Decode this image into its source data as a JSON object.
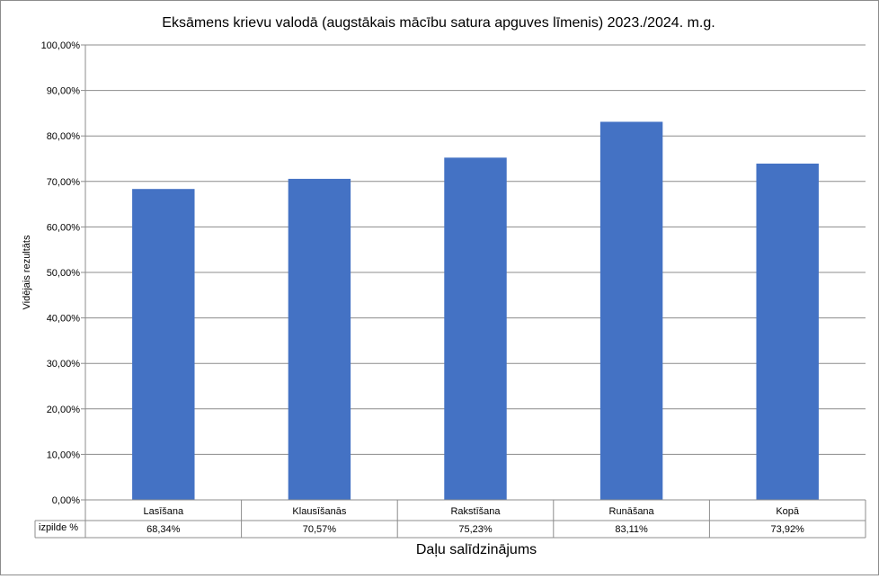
{
  "chart_data": {
    "type": "bar",
    "title": "Eksāmens krievu valodā (augstākais mācību satura apguves līmenis) 2023./2024. m.g.",
    "xlabel": "Daļu salīdzinājums",
    "ylabel": "Vidējais rezultāts",
    "ylim": [
      0,
      100
    ],
    "yticks": [
      0,
      10,
      20,
      30,
      40,
      50,
      60,
      70,
      80,
      90,
      100
    ],
    "ytick_labels": [
      "0,00%",
      "10,00%",
      "20,00%",
      "30,00%",
      "40,00%",
      "50,00%",
      "60,00%",
      "70,00%",
      "80,00%",
      "90,00%",
      "100,00%"
    ],
    "grid": true,
    "legend": "none",
    "categories": [
      "Lasīšana",
      "Klausīšanās",
      "Rakstīšana",
      "Runāšana",
      "Kopā"
    ],
    "series": [
      {
        "name": "izpilde %",
        "values": [
          68.34,
          70.57,
          75.23,
          83.11,
          73.92
        ],
        "labels": [
          "68,34%",
          "70,57%",
          "75,23%",
          "83,11%",
          "73,92%"
        ],
        "color": "#4472c4"
      }
    ],
    "data_table": true
  }
}
